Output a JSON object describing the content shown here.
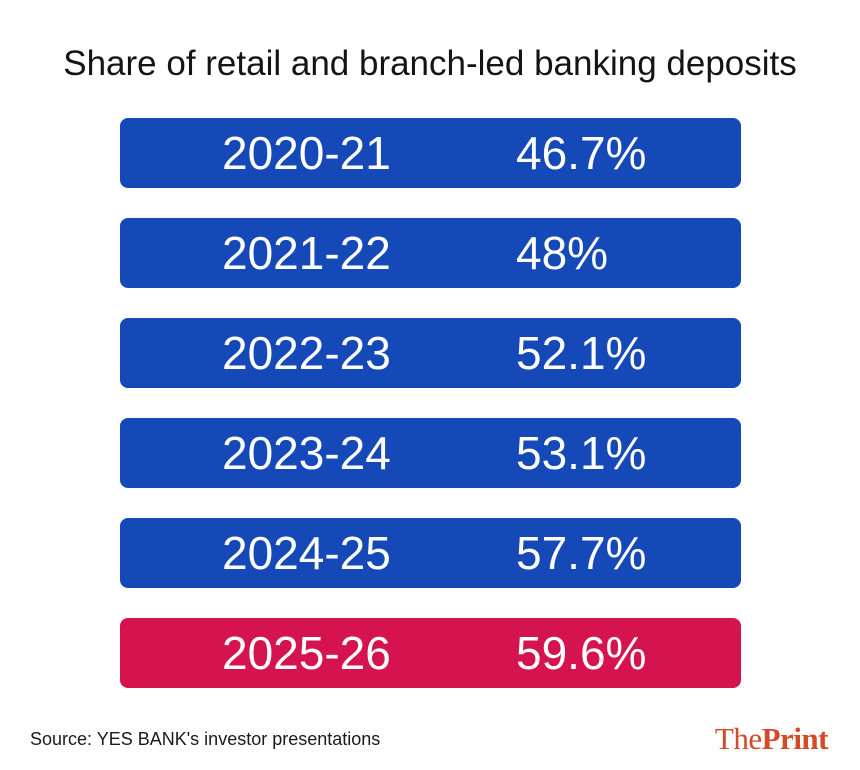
{
  "chart_data": {
    "type": "table",
    "title": "Share of retail and branch-led banking deposits",
    "categories": [
      "2020-21",
      "2021-22",
      "2022-23",
      "2023-24",
      "2024-25",
      "2025-26"
    ],
    "values": [
      46.7,
      48,
      52.1,
      53.1,
      57.7,
      59.6
    ],
    "value_labels": [
      "46.7%",
      "48%",
      "52.1%",
      "53.1%",
      "57.7%",
      "59.6%"
    ],
    "highlighted_category": "2025-26",
    "colors": {
      "default": "#1649b8",
      "highlight": "#d5144f"
    }
  },
  "source": "Source: YES BANK's investor presentations",
  "logo": {
    "part1": "The",
    "part2": "Print"
  }
}
